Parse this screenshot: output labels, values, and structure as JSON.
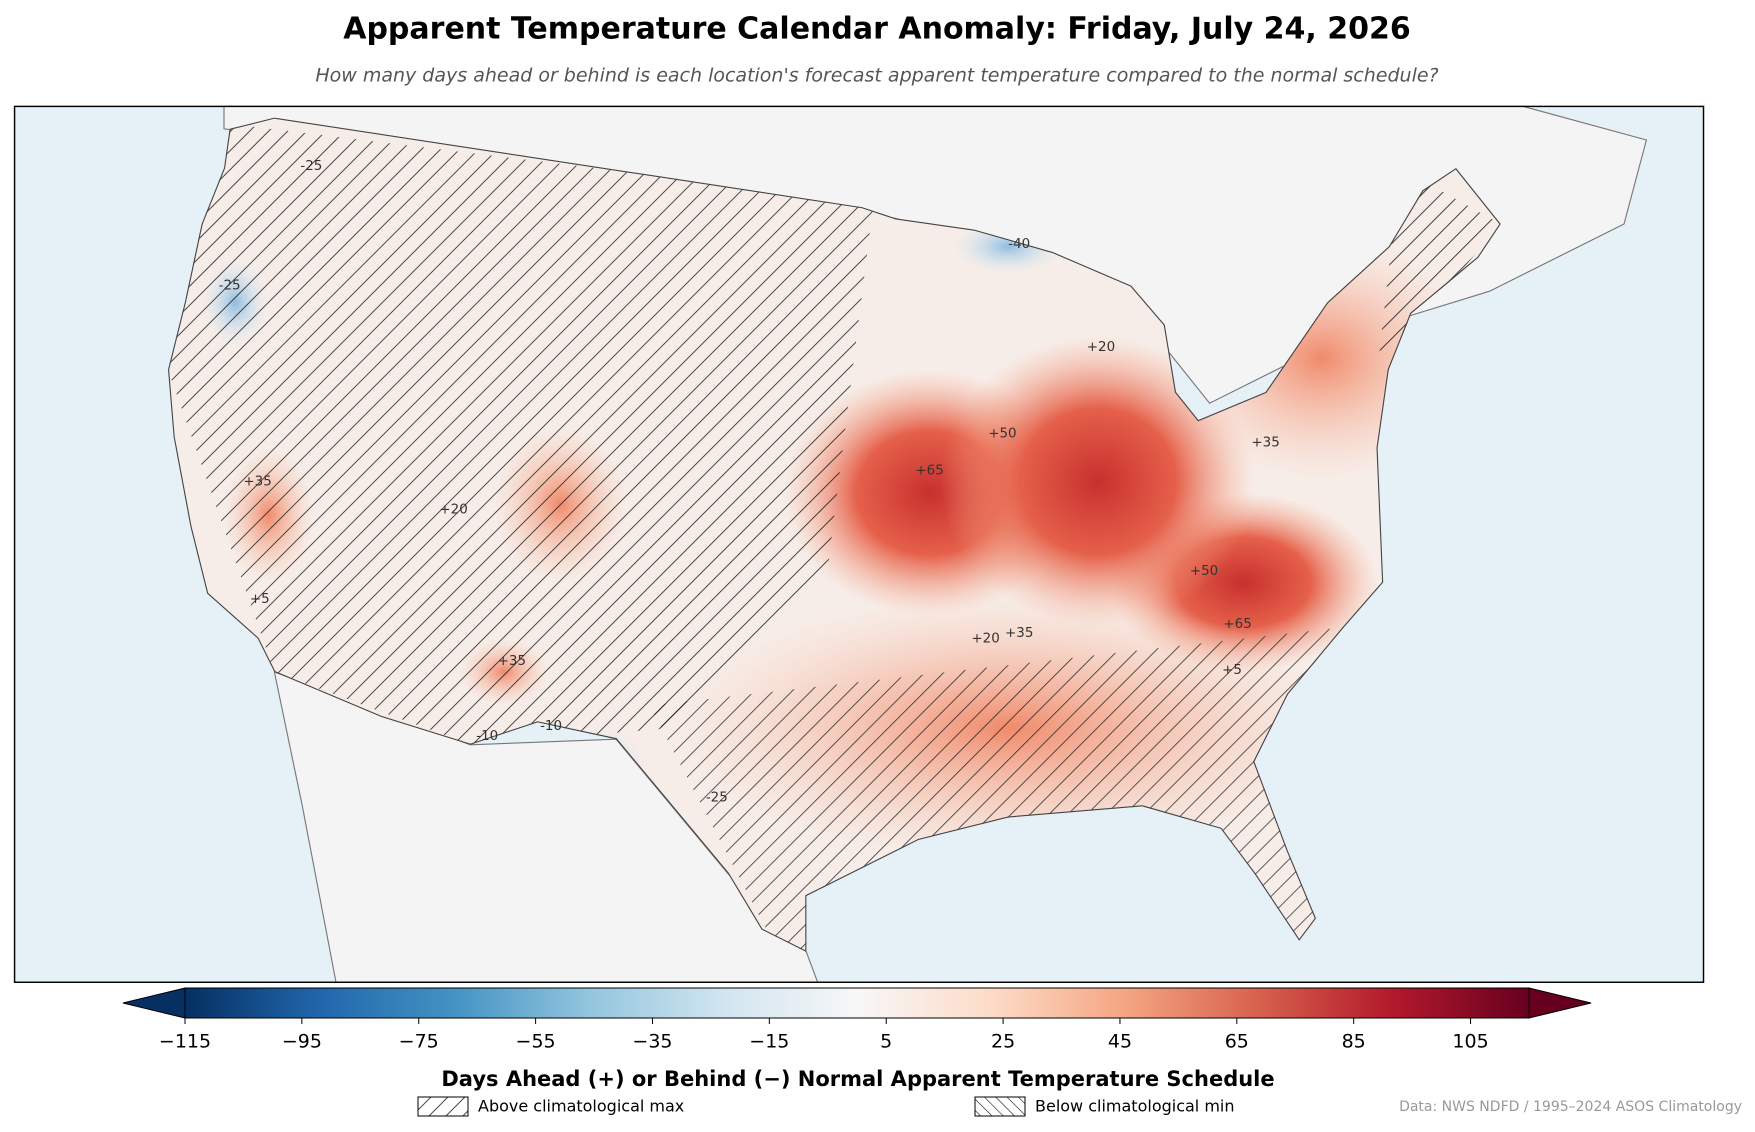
{
  "title": "Apparent Temperature Calendar Anomaly: Friday, July 24, 2026",
  "subtitle": "How many days ahead or behind is each location's forecast apparent temperature compared to the normal schedule?",
  "map": {
    "contour_labels": [
      "+65",
      "+65",
      "+50",
      "+50",
      "+35",
      "+35",
      "+35",
      "+20",
      "+20",
      "+20",
      "+5",
      "+5",
      "-25",
      "-25",
      "-40",
      "-10",
      "-10",
      "-25",
      "+35"
    ]
  },
  "chart_data": {
    "type": "colorbar",
    "clim": [
      -115,
      115
    ],
    "colormap": [
      "#053061",
      "#2166ac",
      "#4393c3",
      "#92c5de",
      "#d1e5f0",
      "#f7f7f7",
      "#fddbc7",
      "#f4a582",
      "#d6604d",
      "#b2182b",
      "#67001f"
    ],
    "ticks": [
      {
        "value": -115,
        "label": "−115"
      },
      {
        "value": -95,
        "label": "−95"
      },
      {
        "value": -75,
        "label": "−75"
      },
      {
        "value": -55,
        "label": "−55"
      },
      {
        "value": -35,
        "label": "−35"
      },
      {
        "value": -15,
        "label": "−15"
      },
      5,
      25,
      45,
      65,
      85,
      105
    ],
    "label": "Days Ahead (+) or Behind (−) Normal Apparent Temperature Schedule"
  },
  "legend": [
    "Above climatological max",
    "Below climatological min"
  ],
  "source": "Data: NWS NDFD / 1995–2024 ASOS Climatology"
}
